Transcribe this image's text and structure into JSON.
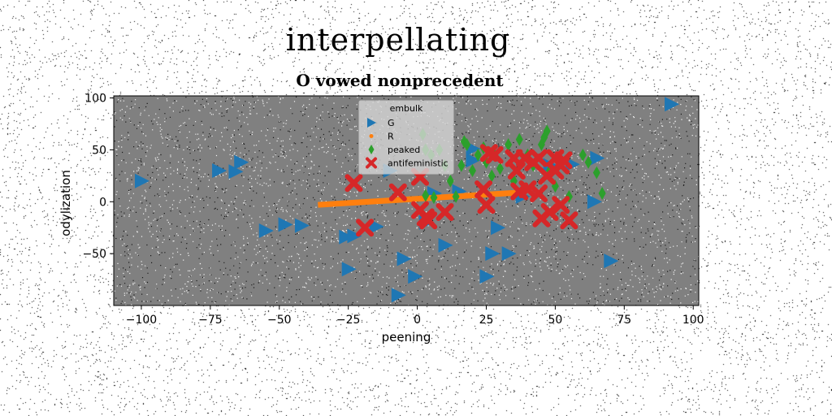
{
  "suptitle": "interpellating",
  "chart_data": {
    "type": "scatter",
    "title": "O vowed nonprecedent",
    "xlabel": "peening",
    "ylabel": "odylization",
    "xlim": [
      -110,
      102
    ],
    "ylim": [
      -100,
      102
    ],
    "xticks": [
      -100,
      -75,
      -50,
      -25,
      0,
      25,
      50,
      75,
      100
    ],
    "yticks": [
      100,
      50,
      0,
      -50
    ],
    "tick_labels_x": [
      "−100",
      "−75",
      "−50",
      "−25",
      "0",
      "25",
      "50",
      "75",
      "100"
    ],
    "tick_labels_y": [
      "100",
      "50",
      "0",
      "−50"
    ],
    "legend_title": "embulk",
    "legend_position": "top-center",
    "background": "#808080",
    "series": [
      {
        "name": "G",
        "marker": "triangle-right",
        "color": "#1f77b4",
        "points": [
          [
            -100,
            20
          ],
          [
            -72,
            30
          ],
          [
            -64,
            38
          ],
          [
            -66,
            29
          ],
          [
            -55,
            -28
          ],
          [
            -48,
            -22
          ],
          [
            -42,
            -23
          ],
          [
            -26,
            -34
          ],
          [
            -23,
            -33
          ],
          [
            -15,
            -24
          ],
          [
            -10,
            30
          ],
          [
            -5,
            -55
          ],
          [
            -7,
            -90
          ],
          [
            -1,
            -72
          ],
          [
            3,
            -20
          ],
          [
            6,
            8
          ],
          [
            10,
            -42
          ],
          [
            15,
            10
          ],
          [
            20,
            40
          ],
          [
            20,
            51
          ],
          [
            25,
            -72
          ],
          [
            27,
            -50
          ],
          [
            29,
            -25
          ],
          [
            33,
            -50
          ],
          [
            38,
            5
          ],
          [
            48,
            35
          ],
          [
            56,
            36
          ],
          [
            64,
            0
          ],
          [
            65,
            42
          ],
          [
            70,
            -57
          ],
          [
            92,
            94
          ],
          [
            -25,
            -65
          ]
        ]
      },
      {
        "name": "R",
        "marker": "line",
        "color": "#ff7f0e",
        "points": [
          [
            -36,
            -3
          ],
          [
            38,
            9
          ]
        ]
      },
      {
        "name": "peaked",
        "marker": "thin-diamond",
        "color": "#2ca02c",
        "points": [
          [
            2,
            65
          ],
          [
            3,
            50
          ],
          [
            5,
            45
          ],
          [
            8,
            50
          ],
          [
            10,
            35
          ],
          [
            12,
            20
          ],
          [
            14,
            5
          ],
          [
            16,
            35
          ],
          [
            17,
            58
          ],
          [
            18,
            55
          ],
          [
            20,
            30
          ],
          [
            22,
            45
          ],
          [
            24,
            52
          ],
          [
            25,
            38
          ],
          [
            27,
            25
          ],
          [
            28,
            45
          ],
          [
            30,
            32
          ],
          [
            33,
            55
          ],
          [
            35,
            20
          ],
          [
            37,
            60
          ],
          [
            40,
            45
          ],
          [
            42,
            35
          ],
          [
            45,
            55
          ],
          [
            46,
            62
          ],
          [
            47,
            68
          ],
          [
            48,
            30
          ],
          [
            50,
            15
          ],
          [
            52,
            38
          ],
          [
            55,
            5
          ],
          [
            60,
            45
          ],
          [
            62,
            38
          ],
          [
            65,
            28
          ],
          [
            67,
            8
          ],
          [
            6,
            4
          ],
          [
            3,
            6
          ]
        ]
      },
      {
        "name": "antifeministic",
        "marker": "x-filled",
        "color": "#d62728",
        "points": [
          [
            -23,
            18
          ],
          [
            -19,
            -25
          ],
          [
            -7,
            9
          ],
          [
            1,
            24
          ],
          [
            1,
            -8
          ],
          [
            3,
            -15
          ],
          [
            4,
            -18
          ],
          [
            10,
            -10
          ],
          [
            24,
            12
          ],
          [
            25,
            -3
          ],
          [
            26,
            47
          ],
          [
            28,
            45
          ],
          [
            35,
            42
          ],
          [
            36,
            30
          ],
          [
            37,
            10
          ],
          [
            39,
            42
          ],
          [
            40,
            12
          ],
          [
            42,
            38
          ],
          [
            44,
            8
          ],
          [
            45,
            -16
          ],
          [
            47,
            25
          ],
          [
            48,
            -10
          ],
          [
            50,
            30
          ],
          [
            52,
            35
          ],
          [
            52,
            -3
          ],
          [
            55,
            -18
          ],
          [
            44,
            42
          ],
          [
            50,
            42
          ],
          [
            53,
            40
          ]
        ]
      }
    ]
  }
}
